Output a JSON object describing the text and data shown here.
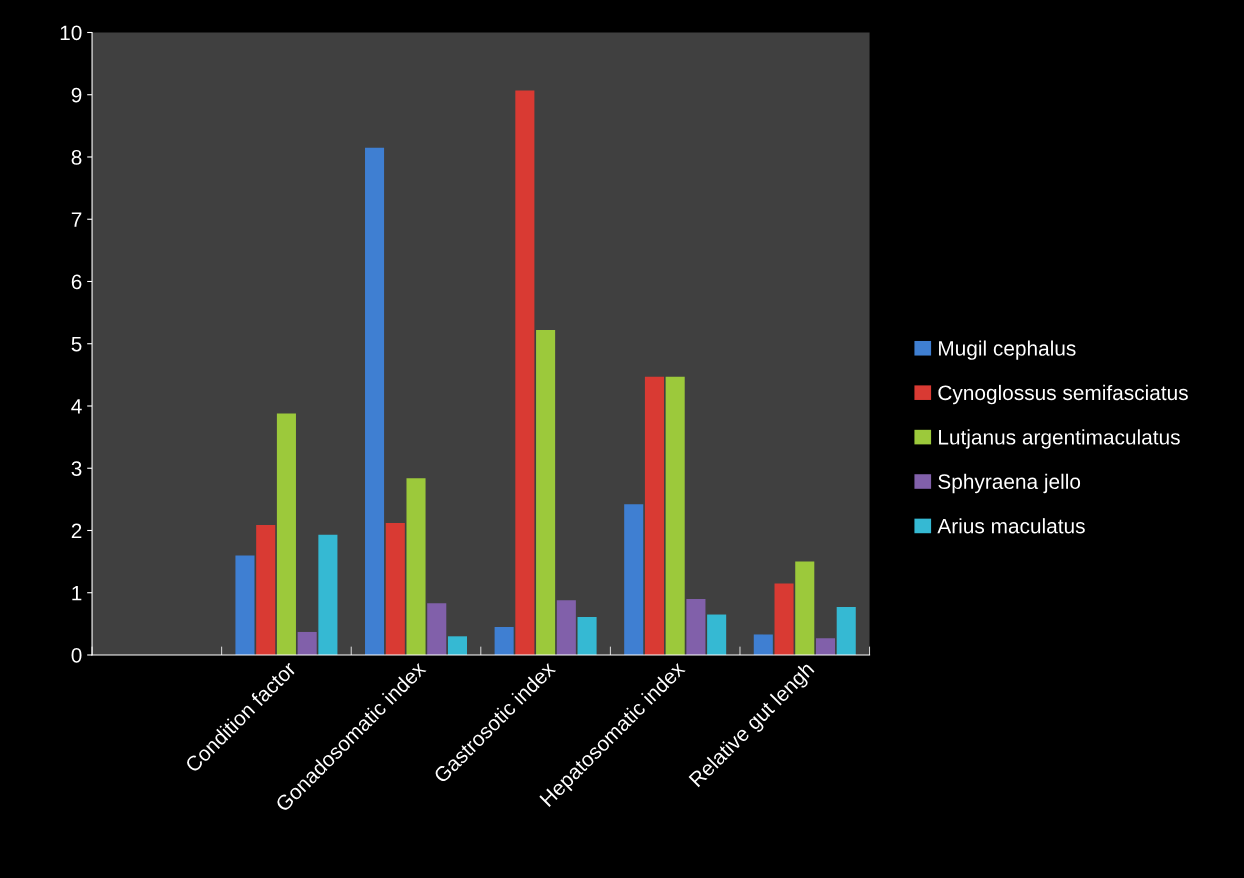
{
  "chart_data": {
    "type": "bar",
    "categories": [
      null,
      "Condition factor",
      "Gonadosomatic index",
      "Gastrosotic index",
      "Hepatosomatic index",
      "Relative gut lengh"
    ],
    "series": [
      {
        "name": "Mugil cephalus",
        "color": "#3f7fd2",
        "values": [
          null,
          1.6,
          8.15,
          0.45,
          2.42,
          0.33
        ]
      },
      {
        "name": "Cynoglossus semifasciatus",
        "color": "#d93a33",
        "values": [
          null,
          2.09,
          2.12,
          9.07,
          4.47,
          1.15
        ]
      },
      {
        "name": "Lutjanus argentimaculatus",
        "color": "#9cc93b",
        "values": [
          null,
          3.88,
          2.84,
          5.22,
          4.47,
          1.5
        ]
      },
      {
        "name": "Sphyraena jello",
        "color": "#8160aa",
        "values": [
          null,
          0.37,
          0.83,
          0.88,
          0.9,
          0.27
        ]
      },
      {
        "name": "Arius maculatus",
        "color": "#35b9d3",
        "values": [
          null,
          1.93,
          0.3,
          0.61,
          0.65,
          0.77
        ]
      }
    ],
    "ylim": [
      0,
      10
    ],
    "yticks": [
      0,
      1,
      2,
      3,
      4,
      5,
      6,
      7,
      8,
      9,
      10
    ],
    "grid": false,
    "legend": "right"
  }
}
